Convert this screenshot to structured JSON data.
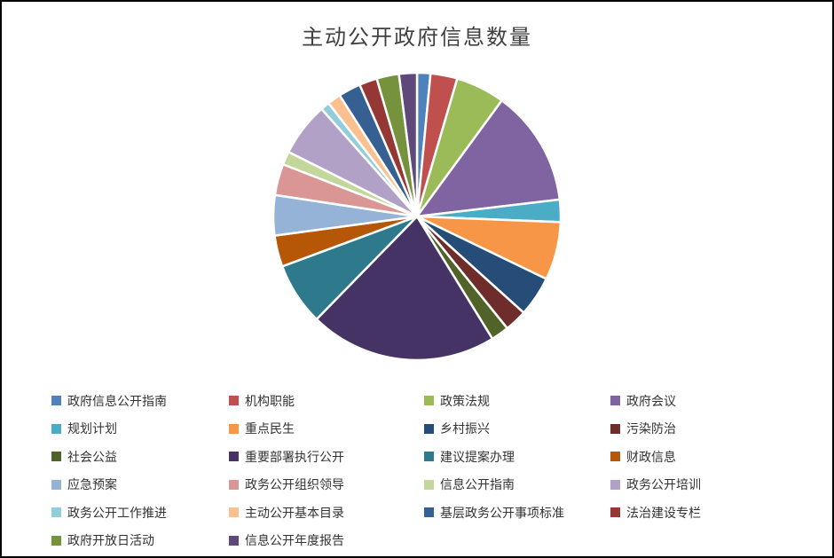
{
  "chart_data": {
    "type": "pie",
    "title": "主动公开政府信息数量",
    "legend_position": "bottom",
    "legend_columns": 4,
    "categories": [
      "政府信息公开指南",
      "机构职能",
      "政策法规",
      "政府会议",
      "规划计划",
      "重点民生",
      "乡村振兴",
      "污染防治",
      "社会公益",
      "重要部署执行公开",
      "建议提案办理",
      "财政信息",
      "应急预案",
      "政务公开组织领导",
      "信息公开指南",
      "政务公开培训",
      "政务公开工作推进",
      "主动公开基本目录",
      "基层政务公开事项标准",
      "法治建设专栏",
      "政府开放日活动",
      "信息公开年度报告"
    ],
    "values": [
      1.5,
      3,
      5.5,
      13,
      2.5,
      6.5,
      4.5,
      2.5,
      2,
      21,
      7,
      3.5,
      4.5,
      3.5,
      1.5,
      6,
      1,
      1.5,
      2.5,
      2,
      2.5,
      2
    ],
    "values_note": "percent of whole, estimated from slice angles (no numeric labels shown)",
    "colors": [
      "#4F81BD",
      "#C0504D",
      "#9BBB59",
      "#8064A2",
      "#4BACC6",
      "#F79646",
      "#264D77",
      "#6E2C2A",
      "#52632A",
      "#463366",
      "#2E7A8C",
      "#B65708",
      "#95B3D7",
      "#D99694",
      "#C3D69B",
      "#B2A1C7",
      "#92CDDC",
      "#FAC090",
      "#366092",
      "#953735",
      "#76923C",
      "#5F497A"
    ],
    "start_angle_deg": 0,
    "direction": "clockwise",
    "slice_border_color": "#ffffff"
  }
}
